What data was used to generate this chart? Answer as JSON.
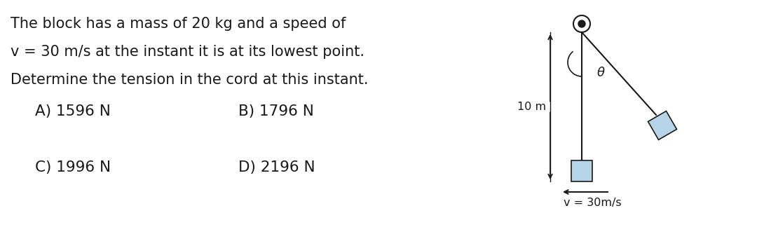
{
  "bg_color": "#ffffff",
  "text_color": "#1a1a1a",
  "question_lines": [
    "The block has a mass of 20 kg and a speed of",
    "v = 30 m/s at the instant it is at its lowest point.",
    "Determine the tension in the cord at this instant."
  ],
  "options": [
    [
      "A) 1596 N",
      "B) 1796 N"
    ],
    [
      "C) 1996 N",
      "D) 2196 N"
    ]
  ],
  "question_fontsize": 15.0,
  "option_fontsize": 15.5,
  "diagram_label_10m": "10 m",
  "diagram_label_theta": "θ",
  "diagram_label_v": "v = 30m/s",
  "bg_color_block": "#b8d4e8",
  "rope_color": "#1a1a1a",
  "arrow_color": "#1a1a1a",
  "text_fontsize_diag": 11.5
}
